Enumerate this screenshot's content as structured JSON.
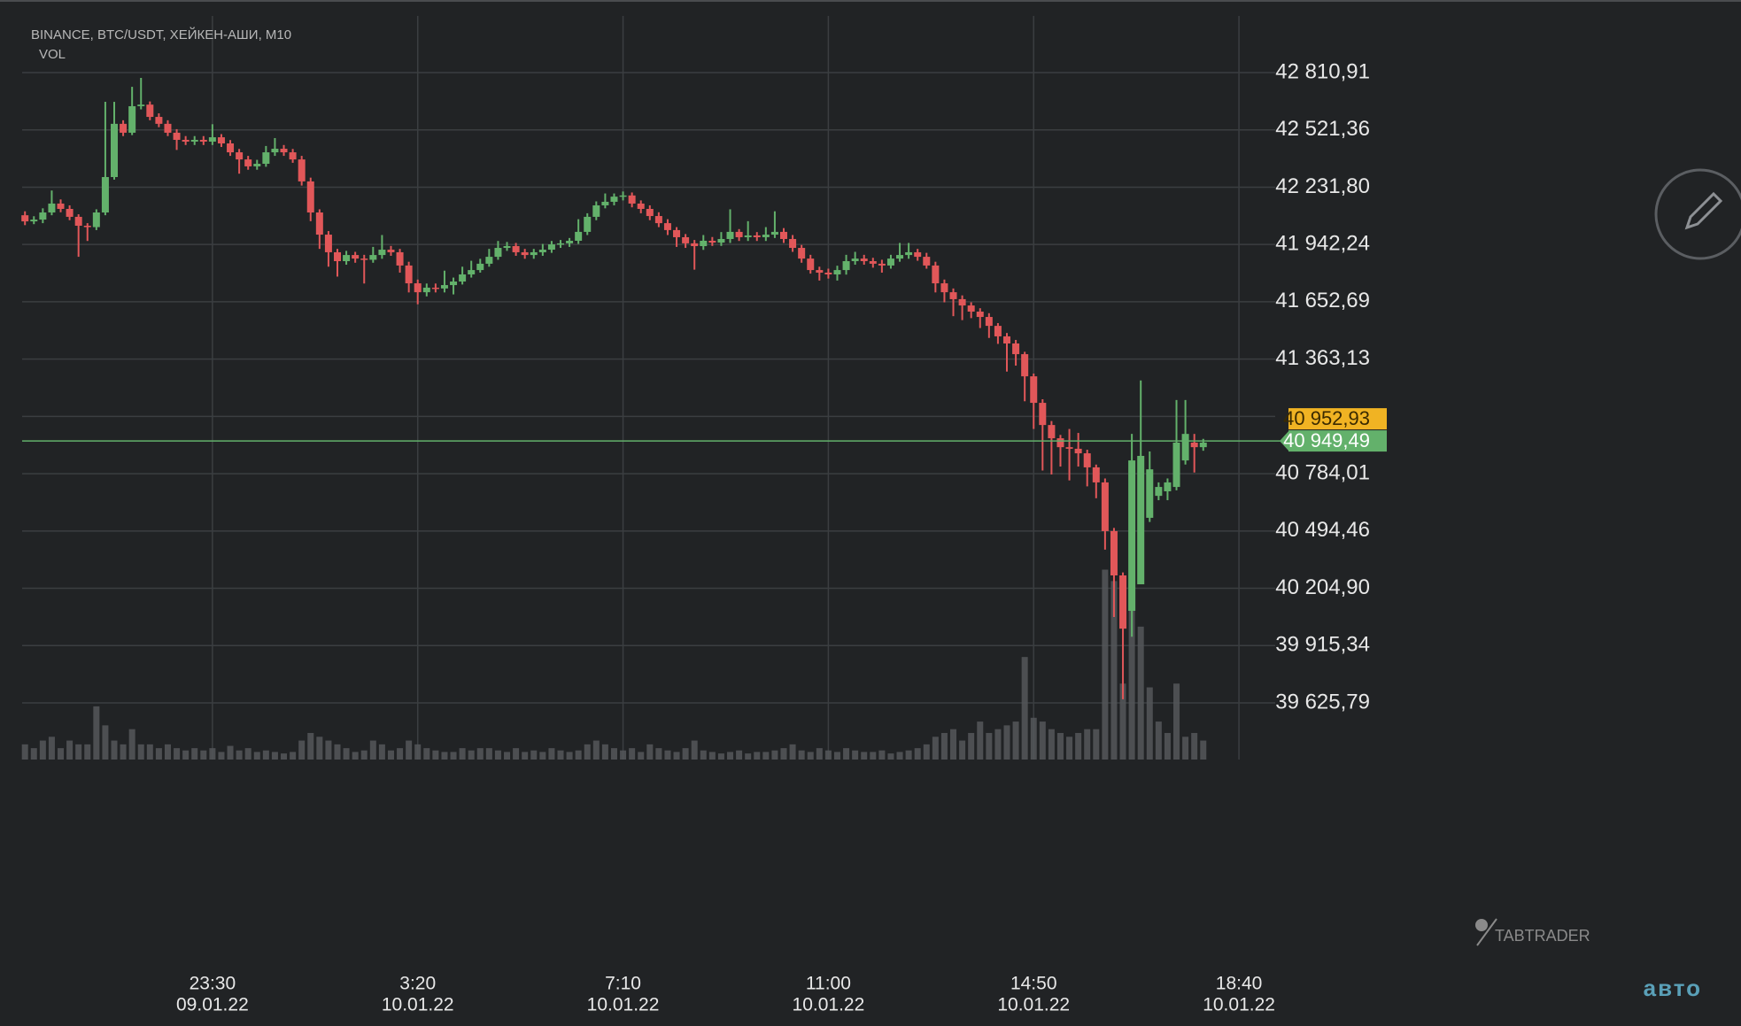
{
  "chart_data": {
    "type": "candlestick",
    "header": "BINANCE, BTC/USDT, ХЕЙКЕН-АШИ, M10",
    "indicator": "VOL",
    "watermark": "TABTRADER",
    "scale_mode": "авто",
    "up_color": "#63b16b",
    "down_color": "#e15759",
    "volume_color": "#55575a",
    "ylim": [
      39339.5,
      43177.7
    ],
    "vlim": [
      0,
      1000
    ],
    "grid": true,
    "yticks": [
      {
        "value": 42810.91,
        "label": "42 810,91"
      },
      {
        "value": 42521.36,
        "label": "42 521,36"
      },
      {
        "value": 42231.8,
        "label": "42 231,80"
      },
      {
        "value": 41942.24,
        "label": "41 942,24"
      },
      {
        "value": 41652.69,
        "label": "41 652,69"
      },
      {
        "value": 41363.13,
        "label": "41 363,13"
      },
      {
        "value": 41073.58,
        "label": null
      },
      {
        "value": 40784.01,
        "label": "40 784,01"
      },
      {
        "value": 40494.46,
        "label": "40 494,46"
      },
      {
        "value": 40204.9,
        "label": "40 204,90"
      },
      {
        "value": 39915.34,
        "label": "39 915,34"
      },
      {
        "value": 39625.79,
        "label": "39 625,79"
      }
    ],
    "xticks": [
      {
        "value": "09.01.22 23:30",
        "label": "23:30",
        "date": "09.01.22"
      },
      {
        "value": "10.01.22 03:20",
        "label": "3:20",
        "date": "10.01.22"
      },
      {
        "value": "10.01.22 07:10",
        "label": "7:10",
        "date": "10.01.22"
      },
      {
        "value": "10.01.22 11:00",
        "label": "11:00",
        "date": "10.01.22"
      },
      {
        "value": "10.01.22 14:50",
        "label": "14:50",
        "date": "10.01.22"
      },
      {
        "value": "10.01.22 18:40",
        "label": "18:40",
        "date": "10.01.22"
      }
    ],
    "price_tags": [
      {
        "value": 40952.93,
        "label": "40 952,93",
        "color": "#f0b323"
      },
      {
        "value": 40949.49,
        "label": "40 949,49",
        "color": "#63b16b"
      }
    ],
    "x": [
      "09.01.22 20:00",
      "09.01.22 20:10",
      "09.01.22 20:20",
      "09.01.22 20:30",
      "09.01.22 20:40",
      "09.01.22 20:50",
      "09.01.22 21:00",
      "09.01.22 21:10",
      "09.01.22 21:20",
      "09.01.22 21:30",
      "09.01.22 21:40",
      "09.01.22 21:50",
      "09.01.22 22:00",
      "09.01.22 22:10",
      "09.01.22 22:20",
      "09.01.22 22:30",
      "09.01.22 22:40",
      "09.01.22 22:50",
      "09.01.22 23:00",
      "09.01.22 23:10",
      "09.01.22 23:20",
      "09.01.22 23:30",
      "09.01.22 23:40",
      "09.01.22 23:50",
      "10.01.22 00:00",
      "10.01.22 00:10",
      "10.01.22 00:20",
      "10.01.22 00:30",
      "10.01.22 00:40",
      "10.01.22 00:50",
      "10.01.22 01:00",
      "10.01.22 01:10",
      "10.01.22 01:20",
      "10.01.22 01:30",
      "10.01.22 01:40",
      "10.01.22 01:50",
      "10.01.22 02:00",
      "10.01.22 02:10",
      "10.01.22 02:20",
      "10.01.22 02:30",
      "10.01.22 02:40",
      "10.01.22 02:50",
      "10.01.22 03:00",
      "10.01.22 03:10",
      "10.01.22 03:20",
      "10.01.22 03:30",
      "10.01.22 03:40",
      "10.01.22 03:50",
      "10.01.22 04:00",
      "10.01.22 04:10",
      "10.01.22 04:20",
      "10.01.22 04:30",
      "10.01.22 04:40",
      "10.01.22 04:50",
      "10.01.22 05:00",
      "10.01.22 05:10",
      "10.01.22 05:20",
      "10.01.22 05:30",
      "10.01.22 05:40",
      "10.01.22 05:50",
      "10.01.22 06:00",
      "10.01.22 06:10",
      "10.01.22 06:20",
      "10.01.22 06:30",
      "10.01.22 06:40",
      "10.01.22 06:50",
      "10.01.22 07:00",
      "10.01.22 07:10",
      "10.01.22 07:20",
      "10.01.22 07:30",
      "10.01.22 07:40",
      "10.01.22 07:50",
      "10.01.22 08:00",
      "10.01.22 08:10",
      "10.01.22 08:20",
      "10.01.22 08:30",
      "10.01.22 08:40",
      "10.01.22 08:50",
      "10.01.22 09:00",
      "10.01.22 09:10",
      "10.01.22 09:20",
      "10.01.22 09:30",
      "10.01.22 09:40",
      "10.01.22 09:50",
      "10.01.22 10:00",
      "10.01.22 10:10",
      "10.01.22 10:20",
      "10.01.22 10:30",
      "10.01.22 10:40",
      "10.01.22 10:50",
      "10.01.22 11:00",
      "10.01.22 11:10",
      "10.01.22 11:20",
      "10.01.22 11:30",
      "10.01.22 11:40",
      "10.01.22 11:50",
      "10.01.22 12:00",
      "10.01.22 12:10",
      "10.01.22 12:20",
      "10.01.22 12:30",
      "10.01.22 12:40",
      "10.01.22 12:50",
      "10.01.22 13:00",
      "10.01.22 13:10",
      "10.01.22 13:20",
      "10.01.22 13:30",
      "10.01.22 13:40",
      "10.01.22 13:50",
      "10.01.22 14:00",
      "10.01.22 14:10",
      "10.01.22 14:20",
      "10.01.22 14:30",
      "10.01.22 14:40",
      "10.01.22 14:50",
      "10.01.22 15:00",
      "10.01.22 15:10",
      "10.01.22 15:20",
      "10.01.22 15:30",
      "10.01.22 15:40",
      "10.01.22 15:50",
      "10.01.22 16:00",
      "10.01.22 16:10",
      "10.01.22 16:20",
      "10.01.22 16:30",
      "10.01.22 16:40",
      "10.01.22 16:50",
      "10.01.22 17:00",
      "10.01.22 17:10",
      "10.01.22 17:20",
      "10.01.22 17:30",
      "10.01.22 17:40",
      "10.01.22 17:50",
      "10.01.22 18:00"
    ],
    "open": [
      42090,
      42059,
      42068,
      42104,
      42149,
      42122,
      42082,
      42037,
      42030,
      42104,
      42283,
      42552,
      42507,
      42641,
      42649,
      42587,
      42552,
      42507,
      42471,
      42462,
      42471,
      42462,
      42484,
      42453,
      42408,
      42372,
      42337,
      42350,
      42408,
      42426,
      42408,
      42372,
      42261,
      42104,
      41992,
      41903,
      41858,
      41889,
      41871,
      41865,
      41889,
      41916,
      41903,
      41836,
      41746,
      41701,
      41724,
      41720,
      41737,
      41755,
      41791,
      41813,
      41845,
      41880,
      41925,
      41934,
      41903,
      41889,
      41903,
      41916,
      41943,
      41948,
      41961,
      42006,
      42082,
      42140,
      42158,
      42184,
      42190,
      42149,
      42122,
      42086,
      42050,
      42015,
      41979,
      41948,
      41934,
      41961,
      41952,
      41970,
      42006,
      41979,
      41988,
      41979,
      41992,
      42006,
      41970,
      41925,
      41871,
      41813,
      41800,
      41791,
      41813,
      41858,
      41871,
      41858,
      41845,
      41836,
      41871,
      41889,
      41903,
      41880,
      41836,
      41746,
      41701,
      41666,
      41634,
      41603,
      41576,
      41531,
      41478,
      41442,
      41388,
      41276,
      41142,
      41030,
      40963,
      40918,
      40910,
      40887,
      40816,
      40740,
      40494,
      40270,
      40091,
      40225,
      40561,
      40672,
      40695,
      40717,
      40851,
      40941,
      40918
    ],
    "high": [
      42110,
      42085,
      42125,
      42215,
      42170,
      42140,
      42095,
      42050,
      42120,
      42663,
      42663,
      42570,
      42739,
      42784,
      42665,
      42605,
      42570,
      42525,
      42490,
      42490,
      42490,
      42550,
      42500,
      42470,
      42425,
      42390,
      42370,
      42440,
      42480,
      42445,
      42425,
      42390,
      42280,
      42120,
      42010,
      41920,
      41910,
      41905,
      41890,
      41930,
      41990,
      41935,
      41920,
      41855,
      41765,
      41745,
      41745,
      41810,
      41775,
      41830,
      41860,
      41870,
      41920,
      41960,
      41955,
      41950,
      41920,
      41920,
      41945,
      41960,
      41965,
      41975,
      42070,
      42100,
      42160,
      42200,
      42200,
      42210,
      42205,
      42165,
      42140,
      42105,
      42070,
      42030,
      41995,
      41965,
      41990,
      41980,
      42005,
      42120,
      42020,
      42060,
      42005,
      42030,
      42110,
      42025,
      41990,
      41940,
      41890,
      41830,
      41820,
      41835,
      41890,
      41905,
      41890,
      41875,
      41865,
      41890,
      41950,
      41950,
      41920,
      41900,
      41855,
      41765,
      41720,
      41685,
      41650,
      41620,
      41595,
      41545,
      41495,
      41460,
      41400,
      41290,
      41160,
      41050,
      40980,
      41010,
      40990,
      40905,
      40830,
      40760,
      40510,
      40285,
      40985,
      41255,
      40896,
      40740,
      40760,
      41156,
      41156,
      40985,
      40960
    ],
    "low": [
      42040,
      42045,
      42050,
      42090,
      42105,
      42065,
      41880,
      41960,
      42015,
      42090,
      42270,
      42490,
      42495,
      42625,
      42570,
      42535,
      42490,
      42420,
      42445,
      42445,
      42445,
      42445,
      42435,
      42390,
      42300,
      42320,
      42320,
      42335,
      42390,
      42390,
      42355,
      42240,
      42060,
      41920,
      41830,
      41780,
      41840,
      41850,
      41745,
      41850,
      41870,
      41885,
      41800,
      41700,
      41640,
      41680,
      41700,
      41700,
      41690,
      41740,
      41775,
      41800,
      41830,
      41865,
      41910,
      41885,
      41870,
      41870,
      41885,
      41900,
      41925,
      41930,
      41945,
      41990,
      42065,
      42125,
      42140,
      42165,
      42130,
      42100,
      42065,
      42030,
      41990,
      41930,
      41925,
      41815,
      41915,
      41935,
      41935,
      41950,
      41960,
      41960,
      41960,
      41960,
      41975,
      41950,
      41905,
      41850,
      41795,
      41760,
      41770,
      41760,
      41790,
      41840,
      41840,
      41825,
      41800,
      41820,
      41855,
      41870,
      41860,
      41820,
      41700,
      41650,
      41580,
      41560,
      41570,
      41520,
      41470,
      41440,
      41300,
      41330,
      41150,
      41010,
      40800,
      40780,
      40820,
      40750,
      40820,
      40720,
      40660,
      40400,
      40060,
      39644,
      39960,
      40225,
      40540,
      40650,
      40650,
      40700,
      40830,
      40790,
      40900
    ],
    "close": [
      42059,
      42068,
      42104,
      42149,
      42122,
      42082,
      42037,
      42030,
      42104,
      42283,
      42552,
      42507,
      42641,
      42649,
      42587,
      42552,
      42507,
      42471,
      42462,
      42471,
      42462,
      42484,
      42453,
      42408,
      42372,
      42337,
      42350,
      42408,
      42426,
      42408,
      42372,
      42261,
      42104,
      41992,
      41903,
      41858,
      41889,
      41871,
      41865,
      41889,
      41916,
      41903,
      41836,
      41746,
      41701,
      41724,
      41720,
      41737,
      41755,
      41791,
      41813,
      41845,
      41880,
      41925,
      41934,
      41903,
      41889,
      41903,
      41916,
      41943,
      41948,
      41961,
      42006,
      42082,
      42140,
      42158,
      42184,
      42190,
      42149,
      42122,
      42086,
      42050,
      42015,
      41979,
      41948,
      41934,
      41961,
      41952,
      41970,
      42006,
      41979,
      41988,
      41979,
      41992,
      42006,
      41970,
      41925,
      41871,
      41813,
      41800,
      41791,
      41813,
      41858,
      41871,
      41858,
      41845,
      41836,
      41871,
      41889,
      41903,
      41880,
      41836,
      41746,
      41701,
      41666,
      41634,
      41603,
      41576,
      41531,
      41478,
      41442,
      41388,
      41276,
      41142,
      41030,
      40963,
      40918,
      40910,
      40887,
      40816,
      40740,
      40494,
      40270,
      40001,
      40851,
      40874,
      40806,
      40717,
      40740,
      40941,
      40985,
      40918,
      40941
    ],
    "volume": [
      20,
      15,
      25,
      30,
      15,
      25,
      20,
      20,
      70,
      45,
      25,
      20,
      40,
      20,
      20,
      15,
      20,
      15,
      12,
      15,
      12,
      15,
      10,
      18,
      12,
      15,
      10,
      12,
      10,
      8,
      10,
      25,
      35,
      30,
      25,
      20,
      15,
      10,
      12,
      25,
      20,
      12,
      15,
      25,
      20,
      15,
      12,
      10,
      10,
      15,
      12,
      15,
      15,
      12,
      10,
      15,
      10,
      12,
      10,
      15,
      12,
      10,
      12,
      20,
      25,
      20,
      15,
      12,
      15,
      10,
      20,
      15,
      12,
      10,
      15,
      25,
      12,
      10,
      8,
      10,
      12,
      8,
      10,
      10,
      12,
      15,
      20,
      12,
      10,
      15,
      12,
      10,
      15,
      12,
      10,
      10,
      12,
      8,
      10,
      12,
      15,
      20,
      30,
      35,
      40,
      25,
      35,
      50,
      35,
      40,
      45,
      50,
      135,
      55,
      50,
      40,
      35,
      30,
      35,
      40,
      40,
      250,
      235,
      100,
      300,
      175,
      95,
      50,
      35,
      100,
      30,
      35,
      25
    ]
  }
}
